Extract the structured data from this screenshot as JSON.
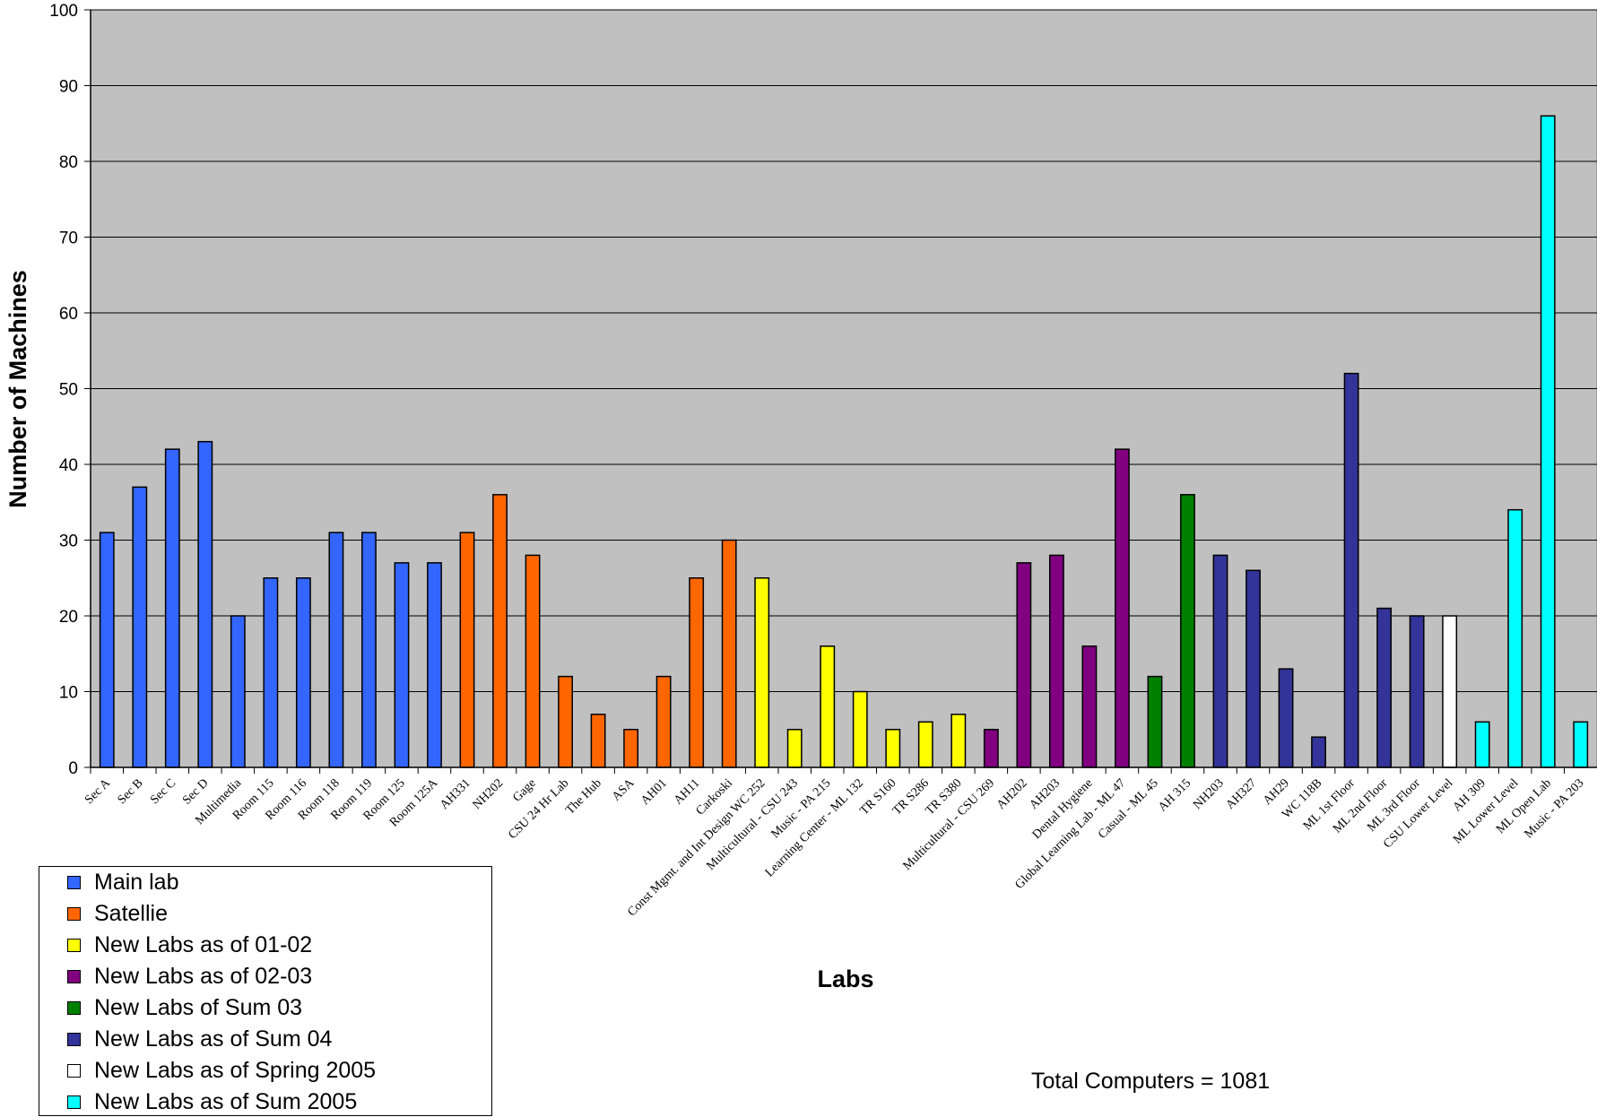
{
  "chart_data": {
    "type": "bar",
    "title": "",
    "xlabel": "Labs",
    "ylabel": "Number of Machines",
    "ylim": [
      0,
      100
    ],
    "yticks": [
      0,
      10,
      20,
      30,
      40,
      50,
      60,
      70,
      80,
      90,
      100
    ],
    "grid": true,
    "legend_position": "bottom-left",
    "plot_background": "#C0C0C0",
    "categories": [
      "Sec A",
      "Sec B",
      "Sec C",
      "Sec D",
      "Multimedia",
      "Room 115",
      "Room 116",
      "Room 118",
      "Room 119",
      "Room 125",
      "Room 125A",
      "AH331",
      "NH202",
      "Gage",
      "CSU 24 Hr Lab",
      "The Hub",
      "ASA",
      "AH01",
      "AH11",
      "Carkoski",
      "Const Mgmt. and Int Design WC 252",
      "Multicultural - CSU 243",
      "Music - PA 215",
      "Learning Center - ML 132",
      "TR S160",
      "TR S286",
      "TR S380",
      "Multicultural - CSU 269",
      "AH202",
      "AH203",
      "Dental Hygiene",
      "Global Learning Lab - ML 47",
      "Casual - ML 45",
      "AH 315",
      "NH203",
      "AH327",
      "AH29",
      "WC 118B",
      "ML 1st Floor",
      "ML 2nd Floor",
      "ML 3rd Floor",
      "CSU Lower Level",
      "AH 309",
      "ML Lower Level",
      "ML Open Lab",
      "Music - PA 203"
    ],
    "values": [
      31,
      37,
      42,
      43,
      20,
      25,
      25,
      31,
      31,
      27,
      27,
      31,
      36,
      28,
      12,
      7,
      5,
      12,
      25,
      30,
      25,
      5,
      16,
      10,
      5,
      6,
      7,
      5,
      27,
      28,
      16,
      42,
      12,
      36,
      28,
      26,
      13,
      4,
      52,
      21,
      20,
      20,
      6,
      34,
      86,
      6
    ],
    "groups": [
      0,
      0,
      0,
      0,
      0,
      0,
      0,
      0,
      0,
      0,
      0,
      1,
      1,
      1,
      1,
      1,
      1,
      1,
      1,
      1,
      2,
      2,
      2,
      2,
      2,
      2,
      2,
      3,
      3,
      3,
      3,
      3,
      4,
      4,
      5,
      5,
      5,
      5,
      5,
      5,
      5,
      6,
      7,
      7,
      7,
      7
    ],
    "series": [
      {
        "name": "Main lab",
        "color": "#3366FF"
      },
      {
        "name": "Satellie",
        "color": "#FF6600"
      },
      {
        "name": "New Labs as of 01-02",
        "color": "#FFFF00"
      },
      {
        "name": "New Labs as of 02-03",
        "color": "#800080"
      },
      {
        "name": "New Labs of Sum 03",
        "color": "#008000"
      },
      {
        "name": "New Labs as of Sum 04",
        "color": "#333399"
      },
      {
        "name": "New Labs as of Spring 2005",
        "color": "#FFFFFF"
      },
      {
        "name": "New Labs as of Sum 2005",
        "color": "#00FFFF"
      }
    ],
    "annotation": "Total Computers = 1081"
  }
}
